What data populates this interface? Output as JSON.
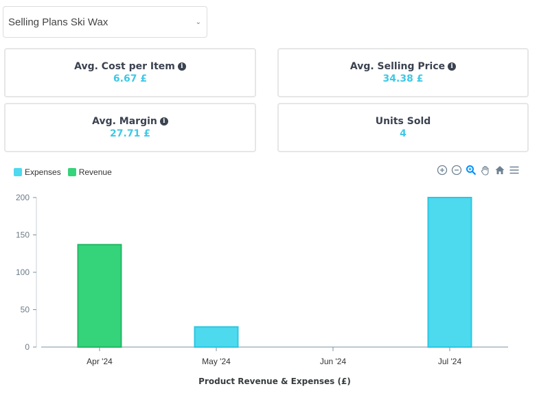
{
  "product_select": {
    "value": "Selling Plans Ski Wax"
  },
  "cards": [
    {
      "title": "Avg. Cost per Item",
      "value": "6.67 £",
      "info": true
    },
    {
      "title": "Avg. Selling Price",
      "value": "34.38 £",
      "info": true
    },
    {
      "title": "Avg. Margin",
      "value": "27.71 £",
      "info": true
    },
    {
      "title": "Units Sold",
      "value": "4",
      "info": false
    }
  ],
  "colors": {
    "expenses": "#4dd9ee",
    "revenue": "#35d37a",
    "accent": "#3ec8e6"
  },
  "toolbar": {
    "icons": [
      "zoom-in-icon",
      "zoom-out-icon",
      "magnifier-icon",
      "pan-hand-icon",
      "home-icon",
      "menu-icon"
    ]
  },
  "chart_data": {
    "type": "bar",
    "title": "Product Revenue & Expenses (£)",
    "categories": [
      "Apr '24",
      "May '24",
      "Jun '24",
      "Jul '24"
    ],
    "series": [
      {
        "name": "Expenses",
        "values": [
          0,
          27,
          0,
          200
        ]
      },
      {
        "name": "Revenue",
        "values": [
          137,
          0,
          0,
          0
        ]
      }
    ],
    "ylim": [
      0,
      200
    ],
    "yticks": [
      0,
      50,
      100,
      150,
      200
    ],
    "legend": "top-left",
    "grid": false
  }
}
